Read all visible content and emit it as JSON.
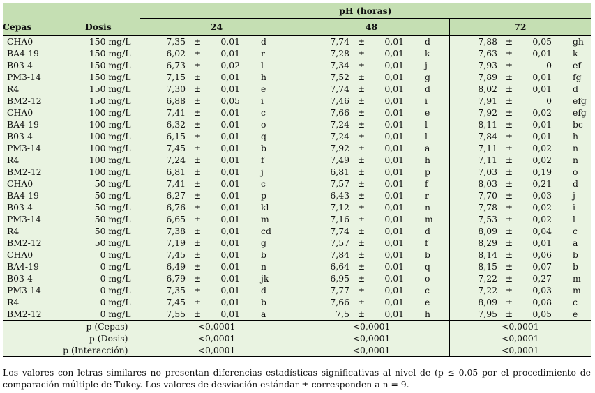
{
  "header": {
    "group_title": "pH (horas)",
    "col_cepas": "Cepas",
    "col_dosis": "Dosis",
    "hours": [
      "24",
      "48",
      "72"
    ]
  },
  "pm_symbol": "±",
  "rows": [
    {
      "cepa": "CHA0",
      "dosis": "150 mg/L",
      "v": [
        [
          "7,35",
          "0,01",
          "d"
        ],
        [
          "7,74",
          "0,01",
          "d"
        ],
        [
          "7,88",
          "0,05",
          "gh"
        ]
      ]
    },
    {
      "cepa": "BA4-19",
      "dosis": "150 mg/L",
      "v": [
        [
          "6,02",
          "0,01",
          "r"
        ],
        [
          "7,28",
          "0,01",
          "k"
        ],
        [
          "7,63",
          "0,01",
          "k"
        ]
      ]
    },
    {
      "cepa": "B03-4",
      "dosis": "150 mg/L",
      "v": [
        [
          "6,73",
          "0,02",
          "l"
        ],
        [
          "7,34",
          "0,01",
          "j"
        ],
        [
          "7,93",
          "0",
          "ef"
        ]
      ]
    },
    {
      "cepa": "PM3-14",
      "dosis": "150 mg/L",
      "v": [
        [
          "7,15",
          "0,01",
          "h"
        ],
        [
          "7,52",
          "0,01",
          "g"
        ],
        [
          "7,89",
          "0,01",
          "fg"
        ]
      ]
    },
    {
      "cepa": "R4",
      "dosis": "150 mg/L",
      "v": [
        [
          "7,30",
          "0,01",
          "e"
        ],
        [
          "7,74",
          "0,01",
          "d"
        ],
        [
          "8,02",
          "0,01",
          "d"
        ]
      ]
    },
    {
      "cepa": "BM2-12",
      "dosis": "150 mg/L",
      "v": [
        [
          "6,88",
          "0,05",
          "i"
        ],
        [
          "7,46",
          "0,01",
          "i"
        ],
        [
          "7,91",
          "0",
          "efg"
        ]
      ]
    },
    {
      "cepa": "CHA0",
      "dosis": "100 mg/L",
      "v": [
        [
          "7,41",
          "0,01",
          "c"
        ],
        [
          "7,66",
          "0,01",
          "e"
        ],
        [
          "7,92",
          "0,02",
          "efg"
        ]
      ]
    },
    {
      "cepa": "BA4-19",
      "dosis": "100 mg/L",
      "v": [
        [
          "6,32",
          "0,01",
          "o"
        ],
        [
          "7,24",
          "0,01",
          "l"
        ],
        [
          "8,11",
          "0,01",
          "bc"
        ]
      ]
    },
    {
      "cepa": "B03-4",
      "dosis": "100 mg/L",
      "v": [
        [
          "6,15",
          "0,01",
          "q"
        ],
        [
          "7,24",
          "0,01",
          "l"
        ],
        [
          "7,84",
          "0,01",
          "h"
        ]
      ]
    },
    {
      "cepa": "PM3-14",
      "dosis": "100 mg/L",
      "v": [
        [
          "7,45",
          "0,01",
          "b"
        ],
        [
          "7,92",
          "0,01",
          "a"
        ],
        [
          "7,11",
          "0,02",
          "n"
        ]
      ]
    },
    {
      "cepa": "R4",
      "dosis": "100 mg/L",
      "v": [
        [
          "7,24",
          "0,01",
          "f"
        ],
        [
          "7,49",
          "0,01",
          "h"
        ],
        [
          "7,11",
          "0,02",
          "n"
        ]
      ]
    },
    {
      "cepa": "BM2-12",
      "dosis": "100 mg/L",
      "v": [
        [
          "6,81",
          "0,01",
          "j"
        ],
        [
          "6,81",
          "0,01",
          "p"
        ],
        [
          "7,03",
          "0,19",
          "o"
        ]
      ]
    },
    {
      "cepa": "CHA0",
      "dosis": "50 mg/L",
      "v": [
        [
          "7,41",
          "0,01",
          "c"
        ],
        [
          "7,57",
          "0,01",
          "f"
        ],
        [
          "8,03",
          "0,21",
          "d"
        ]
      ]
    },
    {
      "cepa": "BA4-19",
      "dosis": "50 mg/L",
      "v": [
        [
          "6,27",
          "0,01",
          "p"
        ],
        [
          "6,43",
          "0,01",
          "r"
        ],
        [
          "7,70",
          "0,03",
          "j"
        ]
      ]
    },
    {
      "cepa": "B03-4",
      "dosis": "50 mg/L",
      "v": [
        [
          "6,76",
          "0,01",
          "kl"
        ],
        [
          "7,12",
          "0,01",
          "n"
        ],
        [
          "7,78",
          "0,02",
          "i"
        ]
      ]
    },
    {
      "cepa": "PM3-14",
      "dosis": "50 mg/L",
      "v": [
        [
          "6,65",
          "0,01",
          "m"
        ],
        [
          "7,16",
          "0,01",
          "m"
        ],
        [
          "7,53",
          "0,02",
          "l"
        ]
      ]
    },
    {
      "cepa": "R4",
      "dosis": "50 mg/L",
      "v": [
        [
          "7,38",
          "0,01",
          "cd"
        ],
        [
          "7,74",
          "0,01",
          "d"
        ],
        [
          "8,09",
          "0,04",
          "c"
        ]
      ]
    },
    {
      "cepa": "BM2-12",
      "dosis": "50 mg/L",
      "v": [
        [
          "7,19",
          "0,01",
          "g"
        ],
        [
          "7,57",
          "0,01",
          "f"
        ],
        [
          "8,29",
          "0,01",
          "a"
        ]
      ]
    },
    {
      "cepa": "CHA0",
      "dosis": "0 mg/L",
      "v": [
        [
          "7,45",
          "0,01",
          "b"
        ],
        [
          "7,84",
          "0,01",
          "b"
        ],
        [
          "8,14",
          "0,06",
          "b"
        ]
      ]
    },
    {
      "cepa": "BA4-19",
      "dosis": "0 mg/L",
      "v": [
        [
          "6,49",
          "0,01",
          "n"
        ],
        [
          "6,64",
          "0,01",
          "q"
        ],
        [
          "8,15",
          "0,07",
          "b"
        ]
      ]
    },
    {
      "cepa": "B03-4",
      "dosis": "0 mg/L",
      "v": [
        [
          "6,79",
          "0,01",
          "jk"
        ],
        [
          "6,95",
          "0,01",
          "o"
        ],
        [
          "7,22",
          "0,27",
          "m"
        ]
      ]
    },
    {
      "cepa": "PM3-14",
      "dosis": "0 mg/L",
      "v": [
        [
          "7,35",
          "0,01",
          "d"
        ],
        [
          "7,77",
          "0,01",
          "c"
        ],
        [
          "7,22",
          "0,03",
          "m"
        ]
      ]
    },
    {
      "cepa": "R4",
      "dosis": "0 mg/L",
      "v": [
        [
          "7,45",
          "0,01",
          "b"
        ],
        [
          "7,66",
          "0,01",
          "e"
        ],
        [
          "8,09",
          "0,08",
          "c"
        ]
      ]
    },
    {
      "cepa": "BM2-12",
      "dosis": "0 mg/L",
      "v": [
        [
          "7,55",
          "0,01",
          "a"
        ],
        [
          "7,5",
          "0,01",
          "h"
        ],
        [
          "7,95",
          "0,05",
          "e"
        ]
      ]
    }
  ],
  "stats": [
    {
      "label": "p (Cepas)",
      "values": [
        "<0,0001",
        "<0,0001",
        "<0,0001"
      ]
    },
    {
      "label": "p (Dosis)",
      "values": [
        "<0,0001",
        "<0,0001",
        "<0,0001"
      ]
    },
    {
      "label": "p (Interacción)",
      "values": [
        "<0,0001",
        "<0,0001",
        "<0,0001"
      ]
    }
  ],
  "footnote": "Los valores con letras similares no presentan diferencias estadísticas significativas al nivel de (p ≤ 0,05 por el procedimiento de comparación múltiple de Tukey. Los valores de desviación estándar ± corresponden a n = 9."
}
